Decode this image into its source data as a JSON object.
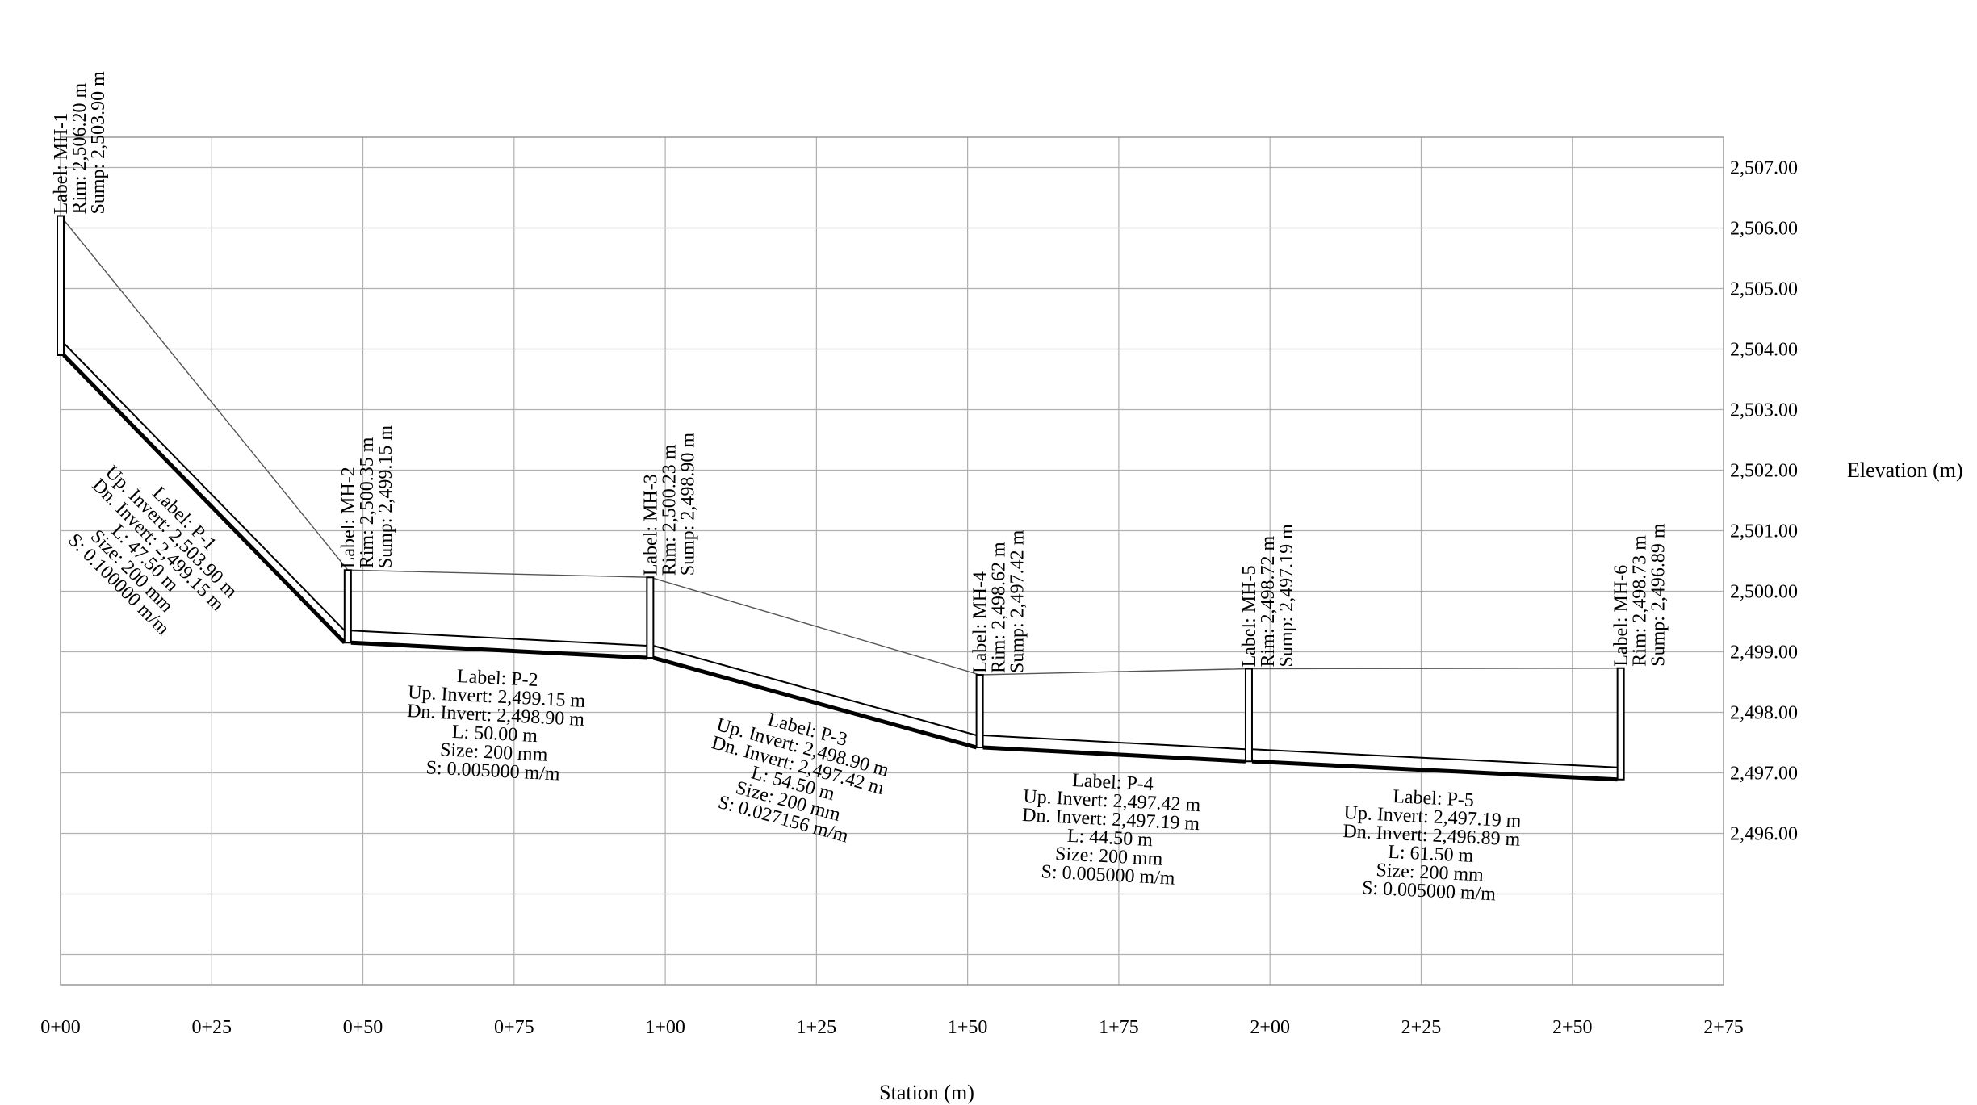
{
  "axes": {
    "x_label": "Station (m)",
    "y_label": "Elevation (m)",
    "x_ticks": [
      "0+00",
      "0+25",
      "0+50",
      "0+75",
      "1+00",
      "1+25",
      "1+50",
      "1+75",
      "2+00",
      "2+25",
      "2+50",
      "2+75"
    ],
    "y_ticks": [
      "2,507.00",
      "2,506.00",
      "2,505.00",
      "2,504.00",
      "2,503.00",
      "2,502.00",
      "2,501.00",
      "2,500.00",
      "2,499.00",
      "2,498.00",
      "2,497.00",
      "2,496.00"
    ]
  },
  "chart_data": {
    "type": "line",
    "xlabel": "Station (m)",
    "ylabel": "Elevation (m)",
    "xlim": [
      0,
      275
    ],
    "ylim": [
      2493.5,
      2507.5
    ],
    "grid": true,
    "manholes": [
      {
        "station": 0.0,
        "rim": 2506.2,
        "sump": 2503.9,
        "lines": [
          "Label: MH-1",
          "Rim: 2,506.20 m",
          "Sump: 2,503.90 m"
        ]
      },
      {
        "station": 47.5,
        "rim": 2500.35,
        "sump": 2499.15,
        "lines": [
          "Label: MH-2",
          "Rim: 2,500.35 m",
          "Sump: 2,499.15 m"
        ]
      },
      {
        "station": 97.5,
        "rim": 2500.23,
        "sump": 2498.9,
        "lines": [
          "Label: MH-3",
          "Rim: 2,500.23 m",
          "Sump: 2,498.90 m"
        ]
      },
      {
        "station": 152.0,
        "rim": 2498.62,
        "sump": 2497.42,
        "lines": [
          "Label: MH-4",
          "Rim: 2,498.62 m",
          "Sump: 2,497.42 m"
        ]
      },
      {
        "station": 196.5,
        "rim": 2498.72,
        "sump": 2497.19,
        "lines": [
          "Label: MH-5",
          "Rim: 2,498.72 m",
          "Sump: 2,497.19 m"
        ]
      },
      {
        "station": 258.0,
        "rim": 2498.73,
        "sump": 2496.89,
        "lines": [
          "Label: MH-6",
          "Rim: 2,498.73 m",
          "Sump: 2,496.89 m"
        ]
      }
    ],
    "pipes": [
      {
        "from": 0,
        "to": 1,
        "up_invert": 2503.9,
        "dn_invert": 2499.15,
        "length": 47.5,
        "size_mm": 200,
        "slope": 0.1,
        "lines": [
          "Label: P-1",
          "Up. Invert: 2,503.90 m",
          "Dn. Invert: 2,499.15 m",
          "L: 47.50 m",
          "Size: 200 mm",
          "S: 0.100000 m/m"
        ]
      },
      {
        "from": 1,
        "to": 2,
        "up_invert": 2499.15,
        "dn_invert": 2498.9,
        "length": 50.0,
        "size_mm": 200,
        "slope": 0.005,
        "lines": [
          "Label: P-2",
          "Up. Invert: 2,499.15 m",
          "Dn. Invert: 2,498.90 m",
          "L: 50.00 m",
          "Size: 200 mm",
          "S: 0.005000 m/m"
        ]
      },
      {
        "from": 2,
        "to": 3,
        "up_invert": 2498.9,
        "dn_invert": 2497.42,
        "length": 54.5,
        "size_mm": 200,
        "slope": 0.027156,
        "lines": [
          "Label: P-3",
          "Up. Invert: 2,498.90 m",
          "Dn. Invert: 2,497.42 m",
          "L: 54.50 m",
          "Size: 200 mm",
          "S: 0.027156 m/m"
        ]
      },
      {
        "from": 3,
        "to": 4,
        "up_invert": 2497.42,
        "dn_invert": 2497.19,
        "length": 44.5,
        "size_mm": 200,
        "slope": 0.005,
        "lines": [
          "Label: P-4",
          "Up. Invert: 2,497.42 m",
          "Dn. Invert: 2,497.19 m",
          "L: 44.50 m",
          "Size: 200 mm",
          "S: 0.005000 m/m"
        ]
      },
      {
        "from": 4,
        "to": 5,
        "up_invert": 2497.19,
        "dn_invert": 2496.89,
        "length": 61.5,
        "size_mm": 200,
        "slope": 0.005,
        "lines": [
          "Label: P-5",
          "Up. Invert: 2,497.19 m",
          "Dn. Invert: 2,496.89 m",
          "L: 61.50 m",
          "Size: 200 mm",
          "S: 0.005000 m/m"
        ]
      }
    ]
  }
}
